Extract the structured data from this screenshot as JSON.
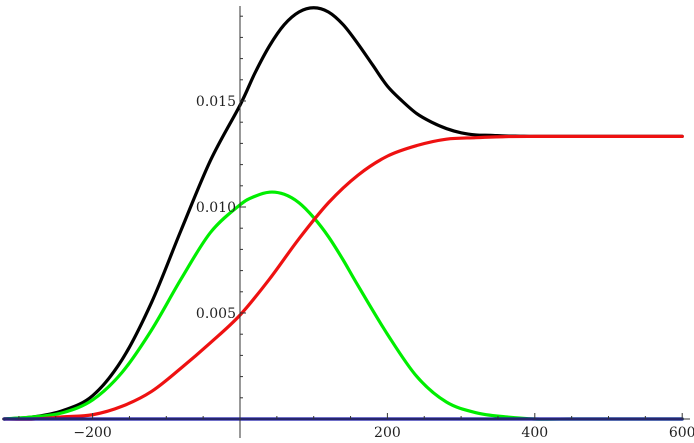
{
  "chart_data": {
    "type": "line",
    "title": "",
    "xlabel": "",
    "ylabel": "",
    "xlim": [
      -320,
      600
    ],
    "ylim": [
      0,
      0.0198
    ],
    "grid": false,
    "x_ticks": [
      -200,
      200,
      400,
      600
    ],
    "x_tick_labels": [
      "−200",
      "200",
      "400",
      "600"
    ],
    "y_ticks": [
      0.005,
      0.01,
      0.015
    ],
    "y_tick_labels": [
      "0.005",
      "0.010",
      "0.015"
    ],
    "series": [
      {
        "color": "#000000",
        "x": [
          -320,
          -280,
          -240,
          -200,
          -160,
          -120,
          -80,
          -40,
          0,
          20,
          40,
          60,
          80,
          100,
          120,
          140,
          160,
          180,
          200,
          220,
          240,
          260,
          280,
          300,
          320,
          340,
          360,
          380,
          400,
          450,
          500,
          550,
          600
        ],
        "y": [
          0.0,
          0.0001,
          0.0004,
          0.0011,
          0.0028,
          0.0055,
          0.0089,
          0.0122,
          0.0148,
          0.0163,
          0.0176,
          0.0186,
          0.0192,
          0.0194,
          0.0192,
          0.0186,
          0.0177,
          0.0167,
          0.0157,
          0.015,
          0.0144,
          0.014,
          0.0137,
          0.0135,
          0.0134,
          0.01338,
          0.01335,
          0.01334,
          0.01333,
          0.01333,
          0.01333,
          0.01333,
          0.01333
        ]
      },
      {
        "color": "#00ee00",
        "x": [
          -320,
          -280,
          -240,
          -200,
          -160,
          -120,
          -80,
          -40,
          0,
          20,
          40,
          60,
          80,
          100,
          120,
          140,
          160,
          200,
          240,
          280,
          320,
          360,
          400,
          450,
          500,
          550,
          600
        ],
        "y": [
          0.0,
          0.0001,
          0.0003,
          0.0009,
          0.0022,
          0.0042,
          0.0066,
          0.0088,
          0.0101,
          0.0105,
          0.0107,
          0.0106,
          0.0102,
          0.0095,
          0.0086,
          0.0075,
          0.0063,
          0.004,
          0.002,
          0.0008,
          0.0003,
          0.0001,
          0.0,
          0.0,
          0.0,
          0.0,
          0.0
        ]
      },
      {
        "color": "#ee1111",
        "x": [
          -320,
          -280,
          -240,
          -200,
          -160,
          -120,
          -80,
          -40,
          0,
          40,
          80,
          120,
          160,
          200,
          240,
          280,
          320,
          360,
          400,
          450,
          500,
          550,
          600
        ],
        "y": [
          0.0,
          0.0,
          0.0001,
          0.0002,
          0.0006,
          0.0013,
          0.0024,
          0.0036,
          0.0049,
          0.0066,
          0.0085,
          0.0102,
          0.0115,
          0.0124,
          0.0129,
          0.0132,
          0.01327,
          0.01332,
          0.01333,
          0.01333,
          0.01333,
          0.01333,
          0.01333
        ]
      },
      {
        "color": "#1a1aa6",
        "x": [
          -320,
          600
        ],
        "y": [
          0.0,
          0.0
        ]
      }
    ]
  }
}
